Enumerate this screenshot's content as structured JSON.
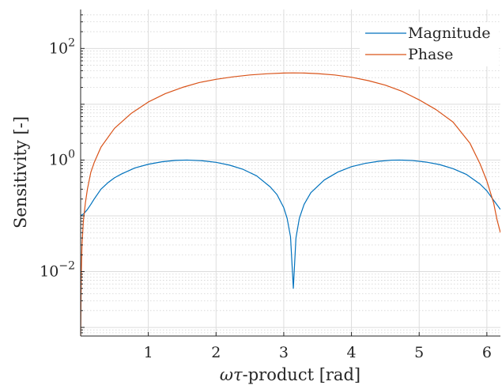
{
  "chart_data": {
    "type": "line",
    "title": "",
    "xlabel_prefix": "ωτ",
    "xlabel_suffix": "-product [rad]",
    "ylabel": "Sensitivity [-]",
    "xlim": [
      0,
      6.2
    ],
    "ylim": [
      0.0007,
      500
    ],
    "yscale": "log",
    "grid": true,
    "minor_grid": true,
    "legend_position": "top-right",
    "x_ticks": [
      1,
      2,
      3,
      4,
      5,
      6
    ],
    "x_tick_labels": [
      "1",
      "2",
      "3",
      "4",
      "5",
      "6"
    ],
    "y_ticks": [
      0.01,
      1,
      100
    ],
    "y_tick_labels": [
      {
        "base": "10",
        "exp": "−2"
      },
      {
        "base": "10",
        "exp": "0"
      },
      {
        "base": "10",
        "exp": "2"
      }
    ],
    "series": [
      {
        "name": "Magnitude",
        "color": "#0072BD",
        "x": [
          0,
          0.05,
          0.1,
          0.15,
          0.2,
          0.3,
          0.4,
          0.5,
          0.6,
          0.8,
          1.0,
          1.2,
          1.4,
          1.5708,
          1.8,
          2.0,
          2.2,
          2.4,
          2.6,
          2.8,
          2.9,
          3.0,
          3.05,
          3.1,
          3.1416,
          3.18,
          3.23,
          3.3,
          3.4,
          3.6,
          3.8,
          4.0,
          4.2,
          4.4,
          4.6,
          4.7124,
          4.9,
          5.1,
          5.3,
          5.5,
          5.7,
          5.9,
          6.0,
          6.1,
          6.2
        ],
        "values": [
          0.1,
          0.11,
          0.13,
          0.16,
          0.2,
          0.3,
          0.39,
          0.48,
          0.56,
          0.72,
          0.84,
          0.93,
          0.985,
          1.0,
          0.97,
          0.91,
          0.81,
          0.68,
          0.52,
          0.33,
          0.24,
          0.14,
          0.09,
          0.042,
          0.005,
          0.04,
          0.09,
          0.16,
          0.26,
          0.44,
          0.61,
          0.76,
          0.87,
          0.95,
          0.995,
          1.0,
          0.98,
          0.92,
          0.83,
          0.7,
          0.55,
          0.37,
          0.28,
          0.19,
          0.13
        ]
      },
      {
        "name": "Phase",
        "color": "#D95319",
        "x": [
          0.001,
          0.005,
          0.01,
          0.02,
          0.04,
          0.07,
          0.1,
          0.15,
          0.2,
          0.3,
          0.5,
          0.75,
          1.0,
          1.25,
          1.5,
          1.75,
          2.0,
          2.25,
          2.5,
          2.75,
          3.0,
          3.1416,
          3.3,
          3.5,
          3.75,
          4.0,
          4.25,
          4.5,
          4.75,
          5.0,
          5.25,
          5.5,
          5.75,
          5.9,
          6.0,
          6.1,
          6.15,
          6.2
        ],
        "values": [
          0.0007,
          0.003,
          0.0095,
          0.03,
          0.08,
          0.17,
          0.3,
          0.6,
          0.9,
          1.7,
          3.7,
          6.9,
          11,
          15.5,
          20,
          24.5,
          28,
          31,
          33.5,
          35.2,
          36.3,
          36.5,
          36.3,
          35.4,
          33.5,
          30.5,
          26.5,
          22,
          17,
          12,
          8,
          4.8,
          2.0,
          0.85,
          0.42,
          0.17,
          0.085,
          0.05
        ]
      }
    ]
  }
}
